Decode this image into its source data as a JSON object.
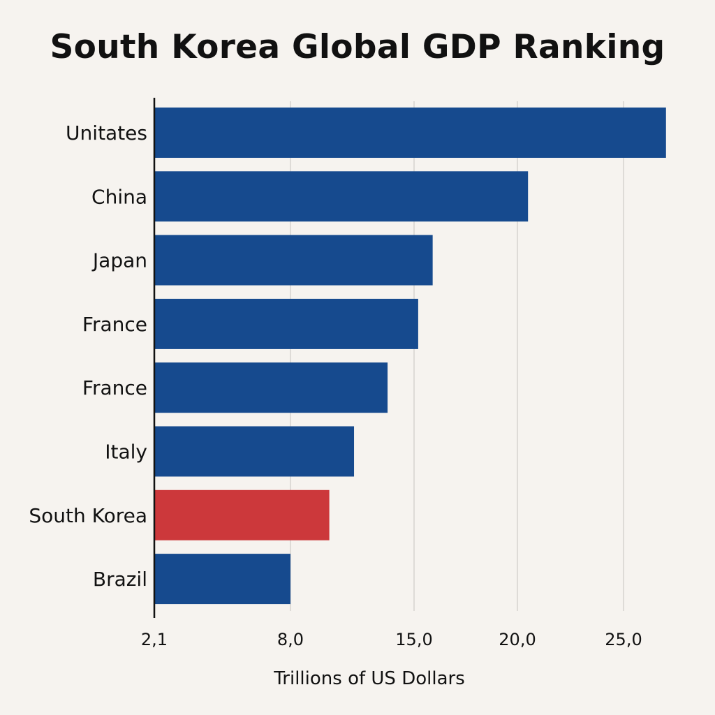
{
  "chart_data": {
    "type": "bar",
    "orientation": "horizontal",
    "title": "South Korea Global GDP Ranking",
    "xlabel": "Trillions of US Dollars",
    "ylabel": "",
    "categories": [
      "Unitates",
      "China",
      "Japan",
      "France",
      "France",
      "Italy",
      "South Korea",
      "Brazil"
    ],
    "values": [
      27.0,
      20.5,
      15.9,
      15.2,
      13.5,
      11.6,
      10.2,
      8.0
    ],
    "highlight_index": 6,
    "bar_color": "#164a8e",
    "highlight_color": "#cc383b",
    "gridline_color": "#d6d3cf",
    "axis_color": "#111111",
    "xticks": [
      {
        "label": "2,1",
        "value": 2.1
      },
      {
        "label": "8,0",
        "value": 8.0
      },
      {
        "label": "15,0",
        "value": 15.0
      },
      {
        "label": "20,0",
        "value": 20.0
      },
      {
        "label": "25,0",
        "value": 25.0
      }
    ],
    "xlim": [
      2.1,
      27.0
    ],
    "grid": true,
    "legend": "none"
  }
}
